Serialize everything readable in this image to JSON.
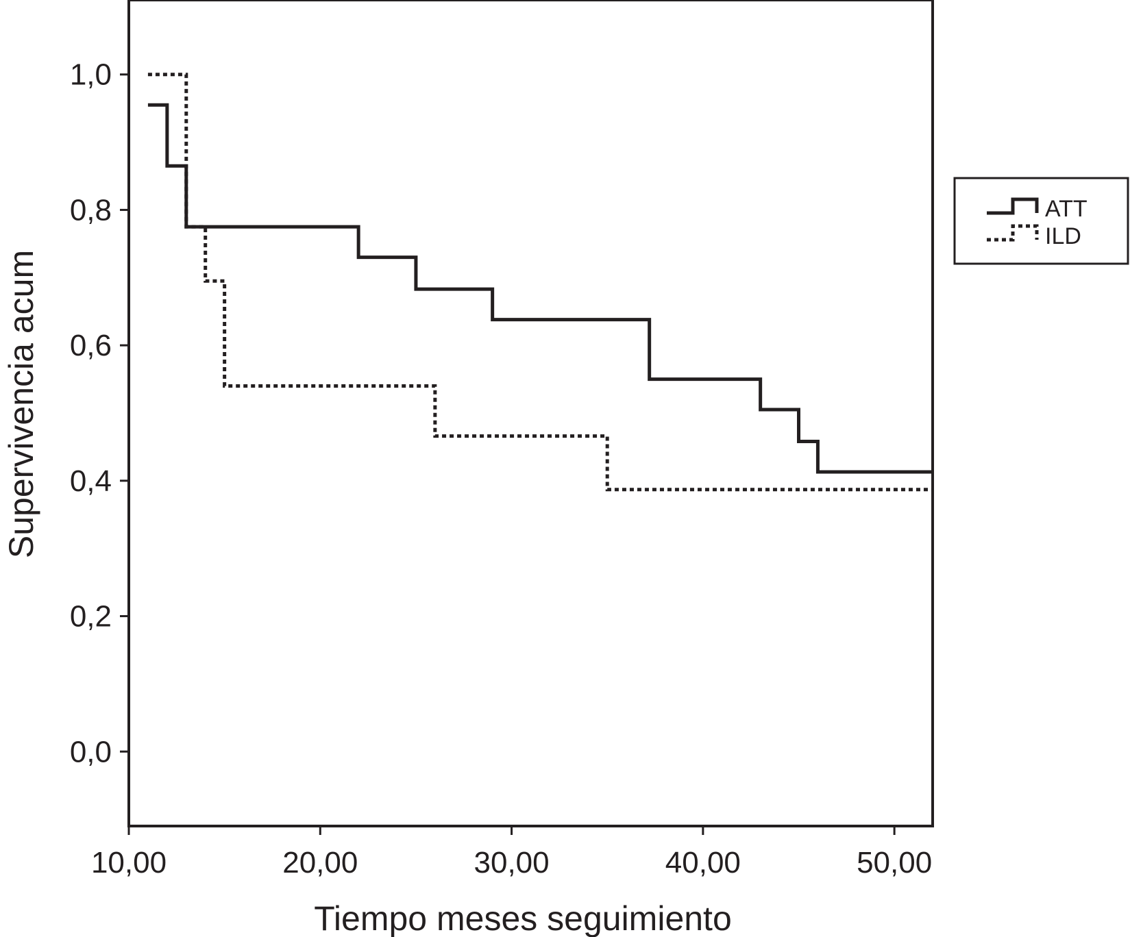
{
  "chart_data": {
    "type": "line",
    "title": "",
    "xlabel": "Tiempo meses seguimiento",
    "ylabel": "Supervivencia acum",
    "xlim": [
      10,
      52
    ],
    "ylim": [
      -0.11,
      1.11
    ],
    "xticks": [
      {
        "value": 10,
        "label": "10,00"
      },
      {
        "value": 20,
        "label": "20,00"
      },
      {
        "value": 30,
        "label": "30,00"
      },
      {
        "value": 40,
        "label": "40,00"
      },
      {
        "value": 50,
        "label": "50,00"
      }
    ],
    "yticks": [
      {
        "value": 0.0,
        "label": "0,0"
      },
      {
        "value": 0.2,
        "label": "0,2"
      },
      {
        "value": 0.4,
        "label": "0,4"
      },
      {
        "value": 0.6,
        "label": "0,6"
      },
      {
        "value": 0.8,
        "label": "0,8"
      },
      {
        "value": 1.0,
        "label": "1,0"
      }
    ],
    "grid": false,
    "legend_position": "right",
    "series": [
      {
        "name": "ATT",
        "style": "solid",
        "color": "#231f20",
        "x": [
          11,
          12,
          13,
          22,
          25,
          29,
          37.2,
          43,
          45,
          46,
          52
        ],
        "y": [
          0.955,
          0.865,
          0.775,
          0.73,
          0.683,
          0.638,
          0.55,
          0.505,
          0.458,
          0.413,
          0.413
        ]
      },
      {
        "name": "ILD",
        "style": "dotted",
        "color": "#231f20",
        "x": [
          11,
          13,
          14,
          15,
          26,
          35,
          52
        ],
        "y": [
          1.0,
          0.775,
          0.695,
          0.54,
          0.466,
          0.387,
          0.387
        ]
      }
    ]
  }
}
